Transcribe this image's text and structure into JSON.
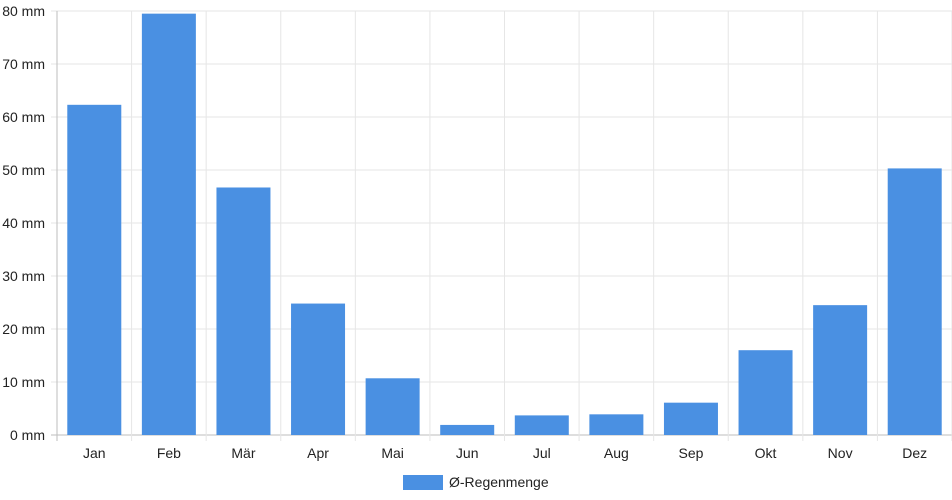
{
  "chart_data": {
    "type": "bar",
    "categories": [
      "Jan",
      "Feb",
      "Mär",
      "Apr",
      "Mai",
      "Jun",
      "Jul",
      "Aug",
      "Sep",
      "Okt",
      "Nov",
      "Dez"
    ],
    "series": [
      {
        "name": "Ø-Regenmenge",
        "color": "#4a90e2",
        "values": [
          62.3,
          79.5,
          46.7,
          24.8,
          10.7,
          1.9,
          3.7,
          3.9,
          6.1,
          16.0,
          24.5,
          50.3
        ]
      }
    ],
    "yunit": "mm",
    "ylim": [
      0,
      80
    ],
    "yticks": [
      0,
      10,
      20,
      30,
      40,
      50,
      60,
      70,
      80
    ],
    "grid": true,
    "legend": "bottom"
  }
}
